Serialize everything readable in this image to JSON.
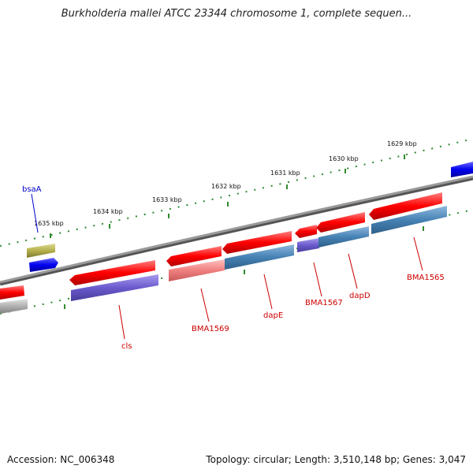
{
  "title": "Burkholderia mallei ATCC 23344 chromosome 1, complete sequen...",
  "footer": {
    "accession": "Accession: NC_006348",
    "topology": "Topology: circular; Length: 3,510,148 bp; Genes: 3,047"
  },
  "colors": {
    "background": "#ffffff",
    "backbone": "#808080",
    "tick": "#2e8b2e",
    "gene_label": "#cc0000",
    "highlight_label": "#0000cc",
    "gene_red": "#ff0000",
    "gene_blue": "#0000ee",
    "cds_purple": "#6a5acd",
    "cds_steel": "#4682b4",
    "cds_pink": "#f08080",
    "cds_olive": "#b5b04a",
    "cds_gray": "#b0b0b0"
  },
  "ticks": [
    "1635 kbp",
    "1634 kbp",
    "1633 kbp",
    "1632 kbp",
    "1631 kbp",
    "1630 kbp",
    "1629 kbp"
  ],
  "gene_labels": [
    "bsaA",
    "cls",
    "BMA1569",
    "dapE",
    "BMA1567",
    "dapD",
    "BMA1565"
  ],
  "features": [
    {
      "name": "bsaA",
      "track": "forward",
      "color": "gene_blue"
    },
    {
      "name": "bsaA",
      "track": "cds-forward",
      "color": "cds_olive"
    },
    {
      "name": "cls",
      "track": "reverse",
      "color": "gene_red"
    },
    {
      "name": "cls",
      "track": "cds-reverse",
      "color": "cds_purple"
    },
    {
      "name": "BMA1569",
      "track": "reverse",
      "color": "gene_red"
    },
    {
      "name": "BMA1569",
      "track": "cds-reverse",
      "color": "cds_pink"
    },
    {
      "name": "dapE",
      "track": "reverse",
      "color": "gene_red"
    },
    {
      "name": "dapE",
      "track": "cds-reverse",
      "color": "cds_steel"
    },
    {
      "name": "BMA1567",
      "track": "reverse",
      "color": "gene_red"
    },
    {
      "name": "BMA1567",
      "track": "cds-reverse",
      "color": "cds_purple"
    },
    {
      "name": "dapD",
      "track": "reverse",
      "color": "gene_red"
    },
    {
      "name": "dapD",
      "track": "cds-reverse",
      "color": "cds_steel"
    },
    {
      "name": "BMA1565",
      "track": "reverse",
      "color": "gene_red"
    },
    {
      "name": "BMA1565",
      "track": "cds-reverse",
      "color": "cds_steel"
    }
  ]
}
